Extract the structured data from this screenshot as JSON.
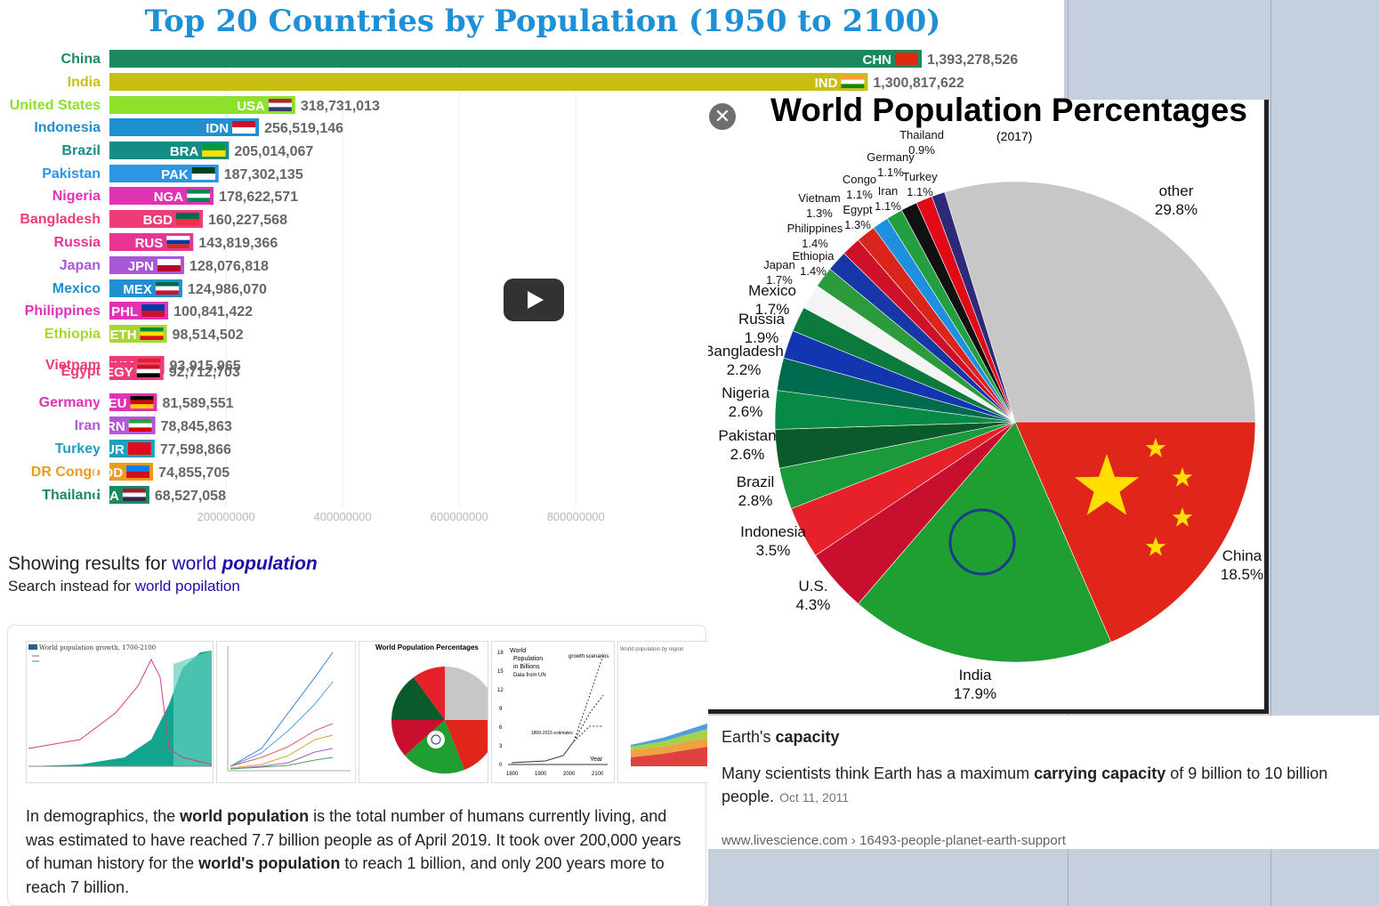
{
  "video": {
    "title": "Top 20 Countries by Population (1950 to 2100)",
    "play_icon": "play-icon",
    "chart_data": {
      "type": "bar",
      "title": "Top 20 Countries by Population (1950 to 2100)",
      "categories": [
        "China",
        "India",
        "United States",
        "Indonesia",
        "Brazil",
        "Pakistan",
        "Nigeria",
        "Bangladesh",
        "Russia",
        "Japan",
        "Mexico",
        "Philippines",
        "Ethiopia",
        "Vietnam",
        "Egypt",
        "Germany",
        "Iran",
        "Turkey",
        "DR Congo",
        "Thailand"
      ],
      "codes": [
        "CHN",
        "IND",
        "USA",
        "IDN",
        "BRA",
        "PAK",
        "NGA",
        "BGD",
        "RUS",
        "JPN",
        "MEX",
        "PHL",
        "ETH",
        "VNM",
        "EGY",
        "DEU",
        "IRN",
        "TUR",
        "COD",
        "THA"
      ],
      "values": [
        1393278526,
        1300817622,
        318731013,
        256519146,
        205014067,
        187302135,
        178622571,
        160227568,
        143819366,
        128076818,
        124986070,
        100841422,
        98514502,
        93915965,
        92712703,
        81589551,
        78845863,
        77598866,
        74855705,
        68527058
      ],
      "value_labels": [
        "1,393,278,526",
        "1,300,817,622",
        "318,731,013",
        "256,519,146",
        "205,014,067",
        "187,302,135",
        "178,622,571",
        "160,227,568",
        "143,819,366",
        "128,076,818",
        "124,986,070",
        "100,841,422",
        "98,514,502",
        "93,915,965",
        "92,712,703",
        "81,589,551",
        "78,845,863",
        "77,598,866",
        "74,855,705",
        "68,527,058"
      ],
      "colors": [
        "#1a8a5e",
        "#c8be16",
        "#8ce12a",
        "#1f8fcf",
        "#168c86",
        "#2b95e6",
        "#e032b4",
        "#ee3c77",
        "#e83493",
        "#a857d6",
        "#1f8fcf",
        "#e032b4",
        "#a7d631",
        "#ee3c77",
        "#ee3c77",
        "#e032b4",
        "#b257d8",
        "#1f9fbf",
        "#ef9b18",
        "#1a8a5e"
      ],
      "x_ticks": [
        200000000,
        400000000,
        600000000,
        800000000
      ],
      "x_tick_labels": [
        "200000000",
        "400000000",
        "600000000",
        "800000000"
      ],
      "xlim": [
        0,
        1650000000
      ]
    }
  },
  "search": {
    "showing_prefix": "Showing results for ",
    "showing_word": "world",
    "showing_bold": "population",
    "instead_prefix": "Search instead for ",
    "instead_link": "world popilation"
  },
  "thumbs": {
    "t1_title": "World population growth, 1700-2100",
    "t3_title": "World Population Percentages",
    "t4_legend": [
      "World",
      "Population",
      "in Billions",
      "Data from UN"
    ],
    "t4_yticks": [
      "18",
      "15",
      "12",
      "9",
      "6",
      "3",
      "0"
    ],
    "t4_xticks": [
      "1800",
      "1900",
      "2000",
      "2100"
    ],
    "t4_year": "Year",
    "t4_scenarios": "growth scenarios",
    "t4_estimates": "1800-2015 estimates",
    "t5_title": "World population by region"
  },
  "description": {
    "p1": "In demographics, the ",
    "b1": "world population",
    "p2": " is the total number of humans currently living, and was estimated to have reached 7.7 billion people as of April 2019. It took over 200,000 years of human history for the ",
    "b2": "world's population",
    "p3": " to reach 1 billion, and only 200 years more to reach 7 billion."
  },
  "pie": {
    "close_icon": "close-icon",
    "title": "World Population Percentages",
    "subtitle": "(2017)",
    "chart_data": {
      "type": "pie",
      "title": "World Population Percentages",
      "subtitle": "(2017)",
      "slices": [
        {
          "label": "China",
          "value": 18.5,
          "text": "18.5%",
          "color": "#e0251b"
        },
        {
          "label": "India",
          "value": 17.9,
          "text": "17.9%",
          "color": "#1f9e32"
        },
        {
          "label": "U.S.",
          "value": 4.3,
          "text": "4.3%",
          "color": "#c8102e"
        },
        {
          "label": "Indonesia",
          "value": 3.5,
          "text": "3.5%",
          "color": "#e62129"
        },
        {
          "label": "Brazil",
          "value": 2.8,
          "text": "2.8%",
          "color": "#1a9a3a"
        },
        {
          "label": "Pakistan",
          "value": 2.6,
          "text": "2.6%",
          "color": "#0b5a2c"
        },
        {
          "label": "Nigeria",
          "value": 2.6,
          "text": "2.6%",
          "color": "#078a46"
        },
        {
          "label": "Bangladesh",
          "value": 2.2,
          "text": "2.2%",
          "color": "#006a4e"
        },
        {
          "label": "Russia",
          "value": 1.9,
          "text": "1.9%",
          "color": "#1235b0"
        },
        {
          "label": "Mexico",
          "value": 1.7,
          "text": "1.7%",
          "color": "#0b7a3c"
        },
        {
          "label": "Japan",
          "value": 1.7,
          "text": "1.7%",
          "color": "#f4f4f4"
        },
        {
          "label": "Ethiopia",
          "value": 1.4,
          "text": "1.4%",
          "color": "#2c9b3b"
        },
        {
          "label": "Philippines",
          "value": 1.4,
          "text": "1.4%",
          "color": "#1736a8"
        },
        {
          "label": "Egypt",
          "value": 1.3,
          "text": "1.3%",
          "color": "#ce1126"
        },
        {
          "label": "Vietnam",
          "value": 1.3,
          "text": "1.3%",
          "color": "#da251d"
        },
        {
          "label": "Congo",
          "value": 1.1,
          "text": "1.1%",
          "color": "#1f8fe0"
        },
        {
          "label": "Iran",
          "value": 1.1,
          "text": "1.1%",
          "color": "#239f40"
        },
        {
          "label": "Germany",
          "value": 1.1,
          "text": "1.1%",
          "color": "#111111"
        },
        {
          "label": "Turkey",
          "value": 1.1,
          "text": "1.1%",
          "color": "#e30a17"
        },
        {
          "label": "Thailand",
          "value": 0.9,
          "text": "0.9%",
          "color": "#2d2a7a"
        },
        {
          "label": "other",
          "value": 29.8,
          "text": "29.8%",
          "color": "#c7c7c7"
        }
      ]
    }
  },
  "capacity": {
    "title_plain": "Earth's ",
    "title_bold": "capacity",
    "text1": "Many scientists think Earth has a maximum ",
    "text_bold": "carrying capacity",
    "text2": " of 9 billion to 10 billion people.",
    "date": "Oct 11, 2011",
    "link_domain": "www.livescience.com",
    "link_sep": " › ",
    "link_path": "16493-people-planet-earth-support"
  }
}
